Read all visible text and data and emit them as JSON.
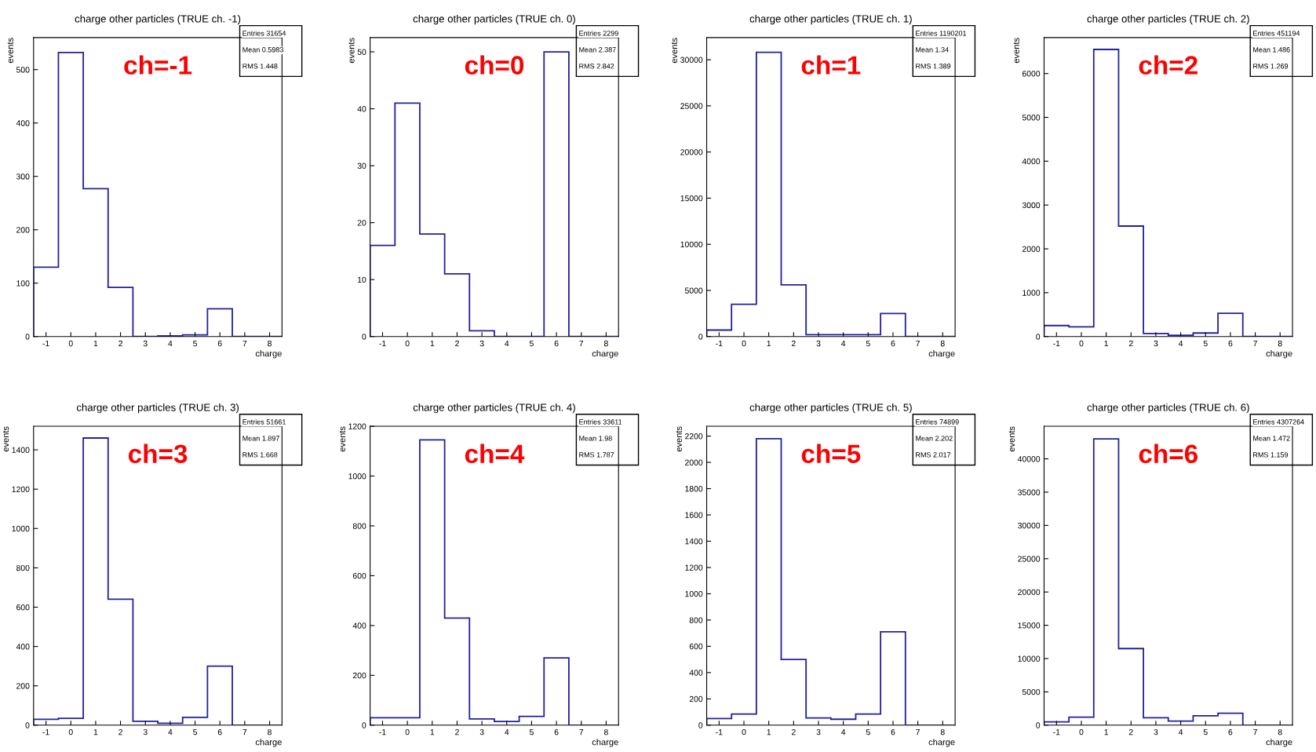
{
  "chart_data": [
    {
      "type": "histogram",
      "title": "charge other particles (TRUE ch. -1)",
      "xlabel": "charge",
      "ylabel": "events",
      "bins": [
        -1.5,
        -0.5,
        0.5,
        1.5,
        2.5,
        3.5,
        4.5,
        5.5,
        6.5,
        7.5,
        8.5
      ],
      "values": [
        130,
        532,
        277,
        92,
        0,
        1,
        3,
        52,
        0,
        0
      ],
      "color": "#2020a0",
      "xlim": [
        -1.5,
        8.5
      ],
      "xticks": [
        -1,
        0,
        1,
        2,
        3,
        4,
        5,
        6,
        7,
        8
      ],
      "ylim": [
        0,
        560
      ],
      "yticks": [
        0,
        100,
        200,
        300,
        400,
        500
      ],
      "grid": false,
      "annotations": [
        "ch=-1",
        "Entries 31654",
        "Mean 0.5983",
        "RMS 1.448"
      ]
    },
    {
      "type": "histogram",
      "title": "charge other particles (TRUE ch. 0)",
      "xlabel": "charge",
      "ylabel": "events",
      "bins": [
        -1.5,
        -0.5,
        0.5,
        1.5,
        2.5,
        3.5,
        4.5,
        5.5,
        6.5,
        7.5,
        8.5
      ],
      "values": [
        16,
        41,
        18,
        11,
        1,
        0,
        0,
        50,
        0,
        0
      ],
      "color": "#2020a0",
      "xlim": [
        -1.5,
        8.5
      ],
      "xticks": [
        -1,
        0,
        1,
        2,
        3,
        4,
        5,
        6,
        7,
        8
      ],
      "ylim": [
        0,
        52.5
      ],
      "yticks": [
        0,
        10,
        20,
        30,
        40,
        50
      ],
      "grid": false,
      "annotations": [
        "ch=0",
        "Entries 2299",
        "Mean 2.387",
        "RMS 2.842"
      ]
    },
    {
      "type": "histogram",
      "title": "charge other particles (TRUE ch. 1)",
      "xlabel": "charge",
      "ylabel": "events",
      "bins": [
        -1.5,
        -0.5,
        0.5,
        1.5,
        2.5,
        3.5,
        4.5,
        5.5,
        6.5,
        7.5,
        8.5
      ],
      "values": [
        700,
        3500,
        30800,
        5600,
        200,
        200,
        200,
        2500,
        0,
        0
      ],
      "color": "#2020a0",
      "xlim": [
        -1.5,
        8.5
      ],
      "xticks": [
        -1,
        0,
        1,
        2,
        3,
        4,
        5,
        6,
        7,
        8
      ],
      "ylim": [
        0,
        32400
      ],
      "yticks": [
        0,
        5000,
        10000,
        15000,
        20000,
        25000,
        30000
      ],
      "grid": false,
      "annotations": [
        "ch=1",
        "Entries 1190201",
        "Mean 1.34",
        "RMS 1.389"
      ]
    },
    {
      "type": "histogram",
      "title": "charge other particles (TRUE ch. 2)",
      "xlabel": "charge",
      "ylabel": "events",
      "bins": [
        -1.5,
        -0.5,
        0.5,
        1.5,
        2.5,
        3.5,
        4.5,
        5.5,
        6.5,
        7.5,
        8.5
      ],
      "values": [
        250,
        220,
        6550,
        2520,
        70,
        30,
        80,
        530,
        0,
        0
      ],
      "color": "#2020a0",
      "xlim": [
        -1.5,
        8.5
      ],
      "xticks": [
        -1,
        0,
        1,
        2,
        3,
        4,
        5,
        6,
        7,
        8
      ],
      "ylim": [
        0,
        6820
      ],
      "yticks": [
        0,
        1000,
        2000,
        3000,
        4000,
        5000,
        6000
      ],
      "grid": false,
      "annotations": [
        "ch=2",
        "Entries 451194",
        "Mean 1.486",
        "RMS 1.269"
      ]
    },
    {
      "type": "histogram",
      "title": "charge other particles (TRUE ch. 3)",
      "xlabel": "charge",
      "ylabel": "events",
      "bins": [
        -1.5,
        -0.5,
        0.5,
        1.5,
        2.5,
        3.5,
        4.5,
        5.5,
        6.5,
        7.5,
        8.5
      ],
      "values": [
        30,
        35,
        1460,
        640,
        20,
        10,
        40,
        300,
        0,
        0
      ],
      "color": "#2020a0",
      "xlim": [
        -1.5,
        8.5
      ],
      "xticks": [
        -1,
        0,
        1,
        2,
        3,
        4,
        5,
        6,
        7,
        8
      ],
      "ylim": [
        0,
        1520
      ],
      "yticks": [
        0,
        200,
        400,
        600,
        800,
        1000,
        1200,
        1400
      ],
      "grid": false,
      "annotations": [
        "ch=3",
        "Entries 51661",
        "Mean 1.897",
        "RMS 1.668"
      ]
    },
    {
      "type": "histogram",
      "title": "charge other particles (TRUE ch. 4)",
      "xlabel": "charge",
      "ylabel": "events",
      "bins": [
        -1.5,
        -0.5,
        0.5,
        1.5,
        2.5,
        3.5,
        4.5,
        5.5,
        6.5,
        7.5,
        8.5
      ],
      "values": [
        30,
        30,
        1145,
        430,
        25,
        15,
        35,
        270,
        0,
        0
      ],
      "color": "#2020a0",
      "xlim": [
        -1.5,
        8.5
      ],
      "xticks": [
        -1,
        0,
        1,
        2,
        3,
        4,
        5,
        6,
        7,
        8
      ],
      "ylim": [
        0,
        1200
      ],
      "yticks": [
        0,
        200,
        400,
        600,
        800,
        1000,
        1200
      ],
      "grid": false,
      "annotations": [
        "ch=4",
        "Entries 33611",
        "Mean 1.98",
        "RMS 1.787"
      ]
    },
    {
      "type": "histogram",
      "title": "charge other particles (TRUE ch. 5)",
      "xlabel": "charge",
      "ylabel": "events",
      "bins": [
        -1.5,
        -0.5,
        0.5,
        1.5,
        2.5,
        3.5,
        4.5,
        5.5,
        6.5,
        7.5,
        8.5
      ],
      "values": [
        50,
        85,
        2180,
        500,
        55,
        45,
        85,
        710,
        0,
        0
      ],
      "color": "#2020a0",
      "xlim": [
        -1.5,
        8.5
      ],
      "xticks": [
        -1,
        0,
        1,
        2,
        3,
        4,
        5,
        6,
        7,
        8
      ],
      "ylim": [
        0,
        2275
      ],
      "yticks": [
        0,
        200,
        400,
        600,
        800,
        1000,
        1200,
        1400,
        1600,
        1800,
        2000,
        2200
      ],
      "grid": false,
      "annotations": [
        "ch=5",
        "Entries 74899",
        "Mean 2.202",
        "RMS 2.017"
      ]
    },
    {
      "type": "histogram",
      "title": "charge other particles (TRUE ch. 6)",
      "xlabel": "charge",
      "ylabel": "events",
      "bins": [
        -1.5,
        -0.5,
        0.5,
        1.5,
        2.5,
        3.5,
        4.5,
        5.5,
        6.5,
        7.5,
        8.5
      ],
      "values": [
        500,
        1200,
        43000,
        11500,
        1100,
        600,
        1400,
        1800,
        0,
        0
      ],
      "color": "#2020a0",
      "xlim": [
        -1.5,
        8.5
      ],
      "xticks": [
        -1,
        0,
        1,
        2,
        3,
        4,
        5,
        6,
        7,
        8
      ],
      "ylim": [
        0,
        44900
      ],
      "yticks": [
        0,
        5000,
        10000,
        15000,
        20000,
        25000,
        30000,
        35000,
        40000
      ],
      "grid": false,
      "annotations": [
        "ch=6",
        "Entries 4307264",
        "Mean 1.472",
        "RMS 1.159"
      ]
    }
  ]
}
